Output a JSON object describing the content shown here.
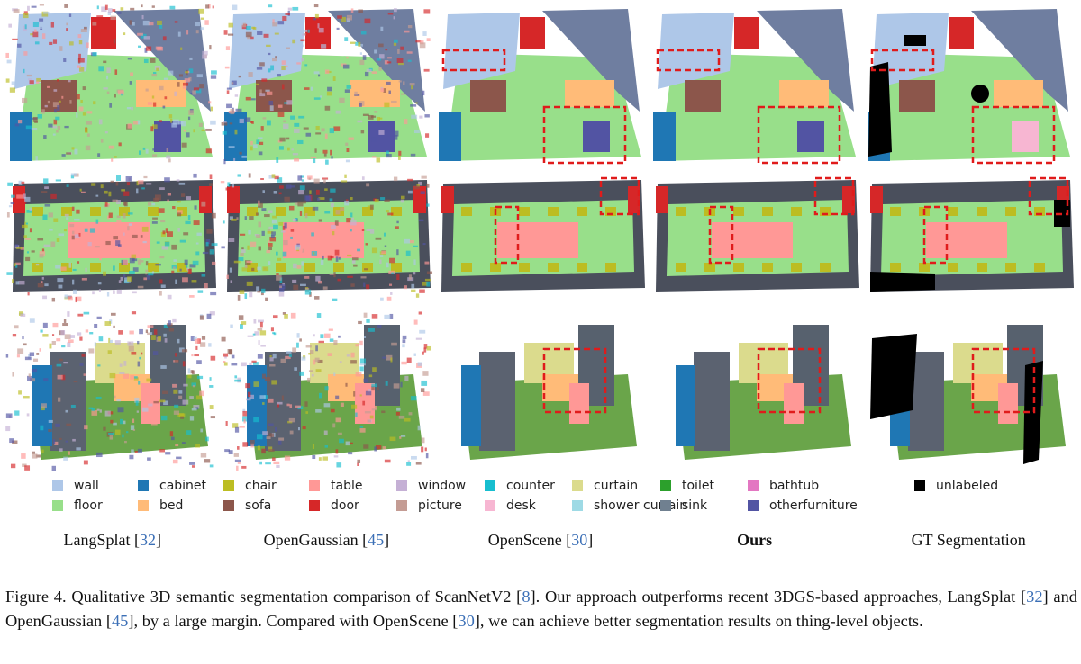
{
  "figure": {
    "rows": [
      {
        "panels": [
          {
            "method": "LangSplat",
            "noisy": true
          },
          {
            "method": "OpenGaussian",
            "noisy": true
          },
          {
            "method": "OpenScene",
            "boxes": true
          },
          {
            "method": "Ours",
            "boxes": true
          },
          {
            "method": "GT Segmentation",
            "boxes": true,
            "unlabeled": true
          }
        ]
      },
      {
        "panels": [
          {
            "method": "LangSplat",
            "noisy": true
          },
          {
            "method": "OpenGaussian",
            "noisy": true
          },
          {
            "method": "OpenScene",
            "boxes": true
          },
          {
            "method": "Ours",
            "boxes": true
          },
          {
            "method": "GT Segmentation",
            "boxes": true,
            "unlabeled": true
          }
        ]
      },
      {
        "panels": [
          {
            "method": "LangSplat",
            "noisy": true
          },
          {
            "method": "OpenGaussian",
            "noisy": true
          },
          {
            "method": "OpenScene",
            "boxes": true
          },
          {
            "method": "Ours",
            "boxes": true
          },
          {
            "method": "GT Segmentation",
            "boxes": true,
            "unlabeled": true
          }
        ]
      }
    ]
  },
  "legend": [
    {
      "label": "wall",
      "color": "#aec7e8"
    },
    {
      "label": "cabinet",
      "color": "#1f77b4"
    },
    {
      "label": "chair",
      "color": "#bcbd22"
    },
    {
      "label": "table",
      "color": "#ff9896"
    },
    {
      "label": "window",
      "color": "#c5b0d5"
    },
    {
      "label": "counter",
      "color": "#17becf"
    },
    {
      "label": "curtain",
      "color": "#dbdb8d"
    },
    {
      "label": "toilet",
      "color": "#2ca02c"
    },
    {
      "label": "bathtub",
      "color": "#e377c2"
    },
    {
      "label": "unlabeled",
      "color": "#000000"
    },
    {
      "label": "floor",
      "color": "#98df8a"
    },
    {
      "label": "bed",
      "color": "#ffbb78"
    },
    {
      "label": "sofa",
      "color": "#8c564b"
    },
    {
      "label": "door",
      "color": "#d62728"
    },
    {
      "label": "picture",
      "color": "#c49c94"
    },
    {
      "label": "desk",
      "color": "#f7b6d2"
    },
    {
      "label": "shower curtain",
      "color": "#9edae5"
    },
    {
      "label": "sink",
      "color": "#708090"
    },
    {
      "label": "otherfurniture",
      "color": "#5254a3"
    }
  ],
  "methods": [
    {
      "name": "LangSplat",
      "cite": "32",
      "bold": false
    },
    {
      "name": "OpenGaussian",
      "cite": "45",
      "bold": false
    },
    {
      "name": "OpenScene",
      "cite": "30",
      "bold": false
    },
    {
      "name": "Ours",
      "cite": "",
      "bold": true
    },
    {
      "name": "GT Segmentation",
      "cite": "",
      "bold": false
    }
  ],
  "caption": [
    {
      "t": "Figure 4. Qualitative 3D semantic segmentation comparison of ScanNetV2 ["
    },
    {
      "t": "8",
      "cite": true
    },
    {
      "t": "]. Our approach outperforms recent 3DGS-based approaches, LangSplat ["
    },
    {
      "t": "32",
      "cite": true
    },
    {
      "t": "] and OpenGaussian ["
    },
    {
      "t": "45",
      "cite": true
    },
    {
      "t": "], by a large margin. Compared with OpenScene ["
    },
    {
      "t": "30",
      "cite": true
    },
    {
      "t": "], we can achieve better segmentation results on thing-level objects."
    }
  ]
}
